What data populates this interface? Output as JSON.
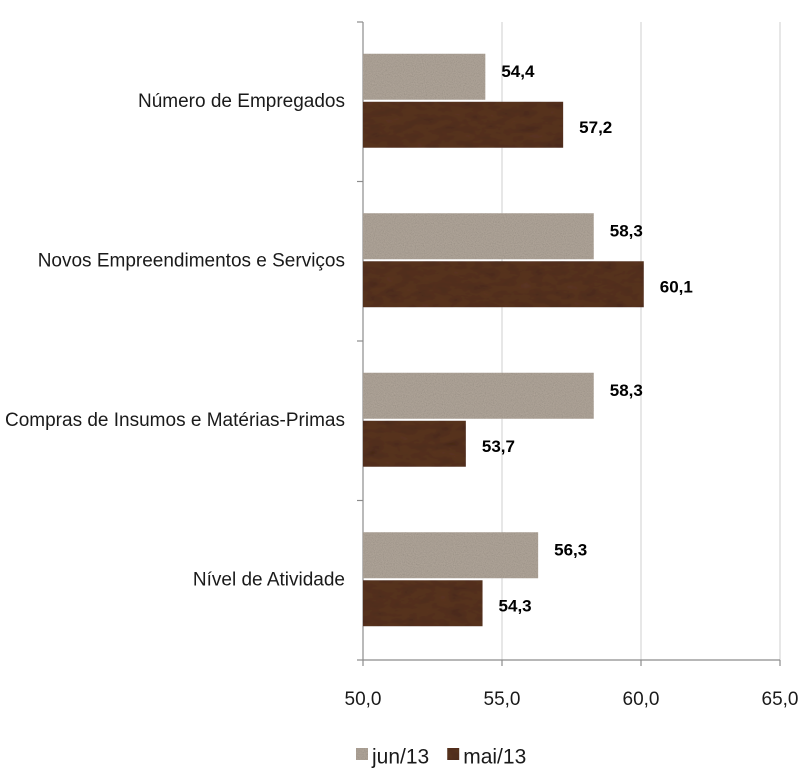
{
  "chart_data": {
    "type": "bar",
    "orientation": "horizontal",
    "categories": [
      "Número de Empregados",
      "Novos Empreendimentos e Serviços",
      "Compras de Insumos e Matérias-Primas",
      "Nível de Atividade"
    ],
    "series": [
      {
        "name": "jun/13",
        "values": [
          54.4,
          58.3,
          58.3,
          56.3
        ],
        "labels": [
          "54,4",
          "58,3",
          "58,3",
          "56,3"
        ],
        "color": "#b3a89c"
      },
      {
        "name": "mai/13",
        "values": [
          57.2,
          60.1,
          53.7,
          54.3
        ],
        "labels": [
          "57,2",
          "60,1",
          "53,7",
          "54,3"
        ],
        "color": "#5a3420"
      }
    ],
    "xlim": [
      50,
      65
    ],
    "xticks": [
      50,
      55,
      60,
      65
    ],
    "xtick_labels": [
      "50,0",
      "55,0",
      "60,0",
      "65,0"
    ],
    "grid": "vertical",
    "legend_position": "bottom"
  }
}
